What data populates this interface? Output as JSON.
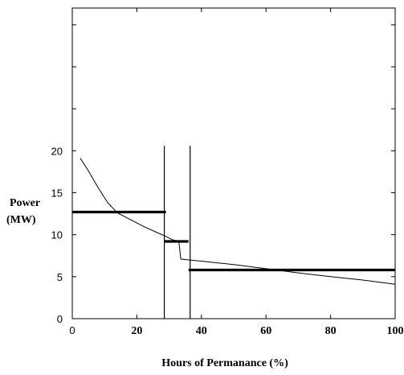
{
  "chart_data": {
    "type": "line",
    "title": "",
    "xlabel": "Hours of Permanance (%)",
    "ylabel_lines": [
      "Power",
      "(MW)"
    ],
    "xlim": [
      0,
      100
    ],
    "ylim": [
      0,
      37
    ],
    "xticks": [
      0,
      20,
      40,
      60,
      80,
      100
    ],
    "yticks": [
      0,
      5,
      10,
      15,
      20
    ],
    "grid": false,
    "legend": "none",
    "colors": {
      "curve": "#000000",
      "levels": "#000000",
      "dividers": "#000000"
    },
    "series": [
      {
        "points": [
          [
            2.5,
            19.1
          ],
          [
            5,
            17.6
          ],
          [
            8,
            15.6
          ],
          [
            11,
            13.8
          ],
          [
            14,
            12.6
          ],
          [
            18,
            11.8
          ],
          [
            22,
            11.0
          ],
          [
            26,
            10.3
          ],
          [
            29,
            9.8
          ],
          [
            31,
            9.4
          ],
          [
            33,
            9.2
          ],
          [
            33.6,
            7.1
          ],
          [
            36,
            7.0
          ],
          [
            40,
            6.85
          ],
          [
            50,
            6.45
          ],
          [
            60,
            5.95
          ],
          [
            70,
            5.45
          ],
          [
            80,
            5.0
          ],
          [
            90,
            4.6
          ],
          [
            100,
            4.1
          ]
        ]
      }
    ],
    "step_levels": [
      {
        "x_start": 0,
        "x_end": 29,
        "y": 12.7
      },
      {
        "x_start": 28.5,
        "x_end": 36,
        "y": 9.2
      },
      {
        "x_start": 36,
        "x_end": 100,
        "y": 5.8
      }
    ],
    "vertical_dividers": [
      {
        "x": 28.5,
        "y_top": 20.6
      },
      {
        "x": 36.5,
        "y_top": 20.6
      }
    ]
  }
}
